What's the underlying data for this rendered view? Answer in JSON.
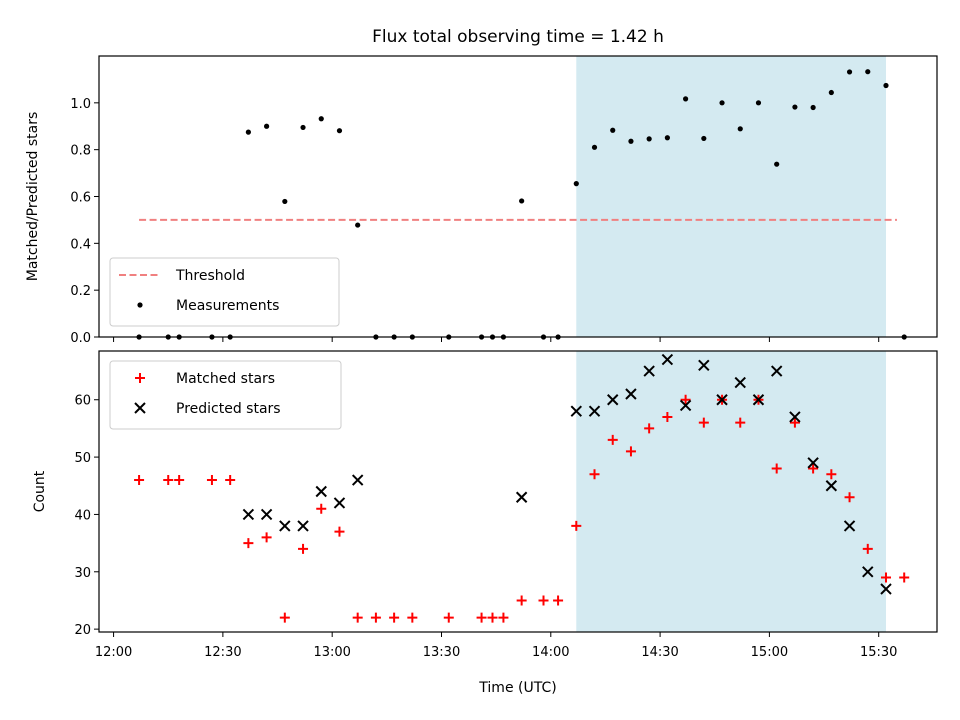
{
  "chart_data": {
    "title": "Flux total observing time = 1.42 h",
    "xlabel": "Time (UTC)",
    "x_ticks": [
      "12:00",
      "12:30",
      "13:00",
      "13:30",
      "14:00",
      "14:30",
      "15:00",
      "15:30"
    ],
    "x_range": [
      "11:56",
      "15:46"
    ],
    "shaded_interval": [
      "14:07",
      "15:32"
    ],
    "shade_color": "#d4eaf1",
    "panels": [
      {
        "type": "scatter",
        "ylabel": "Matched/Predicted stars",
        "ylim": [
          0,
          1.2
        ],
        "y_ticks": [
          "0.0",
          "0.2",
          "0.4",
          "0.6",
          "0.8",
          "1.0"
        ],
        "threshold": {
          "name": "Threshold",
          "value": 0.5,
          "x_range": [
            "12:07",
            "15:35"
          ],
          "color": "#f08080"
        },
        "legend": {
          "position": "lower-left",
          "items": [
            "Threshold",
            "Measurements"
          ]
        },
        "series": [
          {
            "name": "Measurements",
            "color": "#000000",
            "marker": "dot",
            "points": [
              [
                "12:07",
                0
              ],
              [
                "12:15",
                0
              ],
              [
                "12:18",
                0
              ],
              [
                "12:27",
                0
              ],
              [
                "12:32",
                0
              ],
              [
                "12:37",
                0.875
              ],
              [
                "12:42",
                0.9
              ],
              [
                "12:47",
                0.579
              ],
              [
                "12:52",
                0.895
              ],
              [
                "12:57",
                0.932
              ],
              [
                "13:02",
                0.881
              ],
              [
                "13:07",
                0.478
              ],
              [
                "13:12",
                0
              ],
              [
                "13:17",
                0
              ],
              [
                "13:22",
                0
              ],
              [
                "13:32",
                0
              ],
              [
                "13:41",
                0
              ],
              [
                "13:44",
                0
              ],
              [
                "13:47",
                0
              ],
              [
                "13:52",
                0.581
              ],
              [
                "13:58",
                0
              ],
              [
                "14:02",
                0
              ],
              [
                "14:07",
                0.655
              ],
              [
                "14:12",
                0.81
              ],
              [
                "14:17",
                0.883
              ],
              [
                "14:22",
                0.836
              ],
              [
                "14:27",
                0.846
              ],
              [
                "14:32",
                0.851
              ],
              [
                "14:37",
                1.017
              ],
              [
                "14:42",
                0.848
              ],
              [
                "14:47",
                1.0
              ],
              [
                "14:52",
                0.889
              ],
              [
                "14:57",
                1.0
              ],
              [
                "15:02",
                0.738
              ],
              [
                "15:07",
                0.982
              ],
              [
                "15:12",
                0.98
              ],
              [
                "15:17",
                1.044
              ],
              [
                "15:22",
                1.132
              ],
              [
                "15:27",
                1.133
              ],
              [
                "15:32",
                1.074
              ],
              [
                "15:37",
                0
              ]
            ]
          }
        ]
      },
      {
        "type": "scatter",
        "ylabel": "Count",
        "ylim": [
          19.5,
          68.5
        ],
        "y_ticks": [
          "20",
          "30",
          "40",
          "50",
          "60"
        ],
        "legend": {
          "position": "upper-left",
          "items": [
            "Matched stars",
            "Predicted stars"
          ]
        },
        "series": [
          {
            "name": "Matched stars",
            "color": "#ff0000",
            "marker": "plus",
            "points": [
              [
                "12:07",
                46
              ],
              [
                "12:15",
                46
              ],
              [
                "12:18",
                46
              ],
              [
                "12:27",
                46
              ],
              [
                "12:32",
                46
              ],
              [
                "12:37",
                35
              ],
              [
                "12:42",
                36
              ],
              [
                "12:47",
                22
              ],
              [
                "12:52",
                34
              ],
              [
                "12:57",
                41
              ],
              [
                "13:02",
                37
              ],
              [
                "13:07",
                22
              ],
              [
                "13:12",
                22
              ],
              [
                "13:17",
                22
              ],
              [
                "13:22",
                22
              ],
              [
                "13:32",
                22
              ],
              [
                "13:41",
                22
              ],
              [
                "13:44",
                22
              ],
              [
                "13:47",
                22
              ],
              [
                "13:52",
                25
              ],
              [
                "13:58",
                25
              ],
              [
                "14:02",
                25
              ],
              [
                "14:07",
                38
              ],
              [
                "14:12",
                47
              ],
              [
                "14:17",
                53
              ],
              [
                "14:22",
                51
              ],
              [
                "14:27",
                55
              ],
              [
                "14:32",
                57
              ],
              [
                "14:37",
                60
              ],
              [
                "14:42",
                56
              ],
              [
                "14:47",
                60
              ],
              [
                "14:52",
                56
              ],
              [
                "14:57",
                60
              ],
              [
                "15:02",
                48
              ],
              [
                "15:07",
                56
              ],
              [
                "15:12",
                48
              ],
              [
                "15:17",
                47
              ],
              [
                "15:22",
                43
              ],
              [
                "15:27",
                34
              ],
              [
                "15:32",
                29
              ],
              [
                "15:37",
                29
              ]
            ]
          },
          {
            "name": "Predicted stars",
            "color": "#000000",
            "marker": "x",
            "points": [
              [
                "12:37",
                40
              ],
              [
                "12:42",
                40
              ],
              [
                "12:47",
                38
              ],
              [
                "12:52",
                38
              ],
              [
                "12:57",
                44
              ],
              [
                "13:02",
                42
              ],
              [
                "13:07",
                46
              ],
              [
                "13:52",
                43
              ],
              [
                "14:07",
                58
              ],
              [
                "14:12",
                58
              ],
              [
                "14:17",
                60
              ],
              [
                "14:22",
                61
              ],
              [
                "14:27",
                65
              ],
              [
                "14:32",
                67
              ],
              [
                "14:37",
                59
              ],
              [
                "14:42",
                66
              ],
              [
                "14:47",
                60
              ],
              [
                "14:52",
                63
              ],
              [
                "14:57",
                60
              ],
              [
                "15:02",
                65
              ],
              [
                "15:07",
                57
              ],
              [
                "15:12",
                49
              ],
              [
                "15:17",
                45
              ],
              [
                "15:22",
                38
              ],
              [
                "15:27",
                30
              ],
              [
                "15:32",
                27
              ]
            ]
          }
        ]
      }
    ]
  }
}
